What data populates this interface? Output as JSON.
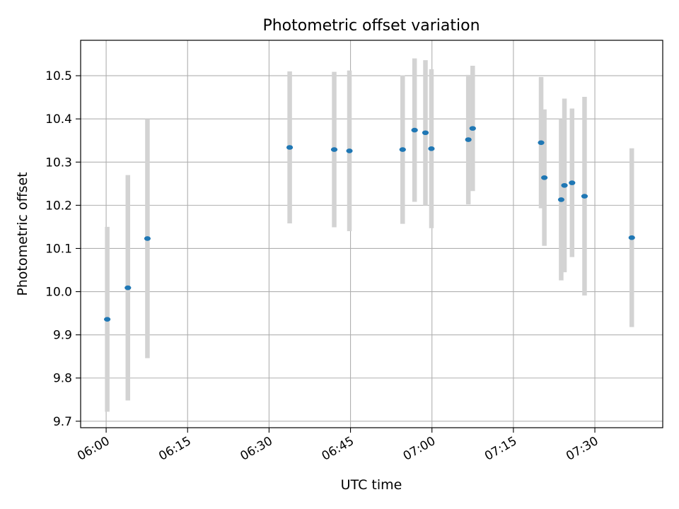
{
  "chart_data": {
    "type": "scatter",
    "title": "Photometric offset variation",
    "xlabel": "UTC time",
    "ylabel": "Photometric offset",
    "x_unit": "UTC clock time (HH:MM)",
    "xlim": [
      "05:55:18",
      "07:42:30"
    ],
    "ylim": [
      9.685,
      10.582
    ],
    "x_ticks": [
      "06:00",
      "06:15",
      "06:30",
      "06:45",
      "07:00",
      "07:15",
      "07:30"
    ],
    "y_ticks": [
      9.7,
      9.8,
      9.9,
      10.0,
      10.1,
      10.2,
      10.3,
      10.4,
      10.5
    ],
    "y_tick_labels": [
      "9.7",
      "9.8",
      "9.9",
      "10.0",
      "10.1",
      "10.2",
      "10.3",
      "10.4",
      "10.5"
    ],
    "grid": true,
    "errorbar_color": "#d3d3d3",
    "marker_color": "#1f77b4",
    "series": [
      {
        "points": [
          {
            "x": "06:00:12",
            "y": 9.936,
            "err": 0.214
          },
          {
            "x": "06:04:00",
            "y": 10.009,
            "err": 0.261
          },
          {
            "x": "06:07:36",
            "y": 10.123,
            "err": 0.277
          },
          {
            "x": "06:33:48",
            "y": 10.334,
            "err": 0.176
          },
          {
            "x": "06:42:00",
            "y": 10.329,
            "err": 0.18
          },
          {
            "x": "06:44:48",
            "y": 10.326,
            "err": 0.186
          },
          {
            "x": "06:54:36",
            "y": 10.329,
            "err": 0.172
          },
          {
            "x": "06:56:48",
            "y": 10.374,
            "err": 0.166
          },
          {
            "x": "06:58:48",
            "y": 10.368,
            "err": 0.168
          },
          {
            "x": "06:59:54",
            "y": 10.331,
            "err": 0.184
          },
          {
            "x": "07:06:42",
            "y": 10.352,
            "err": 0.15
          },
          {
            "x": "07:07:30",
            "y": 10.378,
            "err": 0.145
          },
          {
            "x": "07:20:06",
            "y": 10.345,
            "err": 0.152
          },
          {
            "x": "07:20:42",
            "y": 10.264,
            "err": 0.158
          },
          {
            "x": "07:23:48",
            "y": 10.213,
            "err": 0.187
          },
          {
            "x": "07:24:24",
            "y": 10.246,
            "err": 0.201
          },
          {
            "x": "07:25:48",
            "y": 10.252,
            "err": 0.172
          },
          {
            "x": "07:28:06",
            "y": 10.221,
            "err": 0.23
          },
          {
            "x": "07:36:48",
            "y": 10.125,
            "err": 0.207
          }
        ]
      }
    ]
  }
}
